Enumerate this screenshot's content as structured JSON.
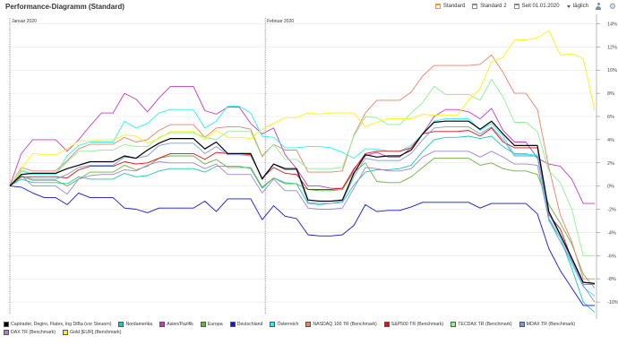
{
  "header": {
    "title": "Performance-Diagramm (Standard)",
    "toolbar": {
      "view1": "Standard",
      "view2": "Standard 2",
      "period": "Seit 01.01.2020",
      "interval": "täglich"
    }
  },
  "chart_data": {
    "type": "line",
    "title": "Performance-Diagramm (Standard)",
    "xlabel": "",
    "ylabel": "",
    "x_range": [
      "2020-01-01",
      "2020-03-12"
    ],
    "month_markers": [
      {
        "label": "Januar 2020",
        "date": "2020-01-01"
      },
      {
        "label": "Februar 2020",
        "date": "2020-02-01"
      }
    ],
    "y_ticks": [
      "14%",
      "12%",
      "10%",
      "8%",
      "6%",
      "4%",
      "2%",
      "0%",
      "-2%",
      "-4%",
      "-6%",
      "-8%",
      "-10%"
    ],
    "ylim": [
      -11,
      14.5
    ],
    "grid": true,
    "legend_position": "bottom",
    "series": [
      {
        "name": "Captrader, Degiro, Flatex, Ing DiBa (vor Steuern)",
        "color": "#000000",
        "values": [
          0,
          1.0,
          1.1,
          1.1,
          1.1,
          1.5,
          1.8,
          2.1,
          2.1,
          2.1,
          2.6,
          2.4,
          3.1,
          3.7,
          4.1,
          4.1,
          4.1,
          3.2,
          3.8,
          2.8,
          2.8,
          2.8,
          0.6,
          1.9,
          1.5,
          1.5,
          -1.2,
          -1.3,
          -1.3,
          -1.2,
          1.1,
          2.7,
          2.5,
          2.6,
          2.6,
          3.1,
          4.5,
          5.5,
          5.6,
          5.6,
          5.6,
          4.9,
          5.6,
          4.5,
          3.5,
          3.5,
          3.5,
          -2.2,
          -4.2,
          -6.2,
          -8.3,
          -8.4
        ]
      },
      {
        "name": "Nordamerika",
        "color": "#19c9b9",
        "values": [
          0,
          0.6,
          0.3,
          0.3,
          0.3,
          0.2,
          0.8,
          0.6,
          0.6,
          0.6,
          1.1,
          0.8,
          0.9,
          1.3,
          1.5,
          1.5,
          1.5,
          1.2,
          1.7,
          1.7,
          1.7,
          1.5,
          -0.2,
          0.7,
          0.3,
          0.2,
          -1.5,
          -1.6,
          -1.5,
          -1.4,
          0.1,
          1.2,
          1.4,
          1.4,
          1.5,
          1.8,
          3.0,
          4.0,
          4.2,
          4.2,
          4.3,
          4.1,
          4.3,
          3.4,
          2.8,
          2.8,
          2.5,
          -2.8,
          -4.5,
          -7.1,
          -10.0,
          -10.9
        ]
      },
      {
        "name": "Asien/Pazifik",
        "color": "#c43cc4",
        "values": [
          0,
          2.8,
          4.0,
          4.0,
          4.0,
          3.0,
          4.0,
          5.2,
          6.3,
          6.3,
          8.0,
          7.5,
          6.4,
          7.6,
          8.6,
          8.6,
          8.6,
          6.5,
          6.2,
          6.8,
          6.8,
          5.4,
          4.5,
          5.0,
          2.7,
          1.5,
          0.0,
          0.0,
          -0.2,
          -0.2,
          1.5,
          2.6,
          2.9,
          2.5,
          2.5,
          3.3,
          4.5,
          6.0,
          6.6,
          6.6,
          6.4,
          5.8,
          6.7,
          4.8,
          3.8,
          3.8,
          2.4,
          1.9,
          1.7,
          0.6,
          -1.5,
          -1.5
        ]
      },
      {
        "name": "Europa",
        "color": "#6db33f",
        "values": [
          0,
          0.8,
          0.5,
          0.5,
          0.5,
          0.0,
          0.6,
          1.2,
          1.2,
          1.2,
          1.8,
          1.4,
          1.7,
          2.4,
          2.6,
          2.6,
          2.6,
          1.9,
          2.3,
          1.6,
          1.6,
          1.6,
          -0.1,
          0.7,
          0.2,
          0.2,
          -0.3,
          -0.4,
          -0.4,
          -0.3,
          1.2,
          2.0,
          0.4,
          0.3,
          0.3,
          0.8,
          1.6,
          2.4,
          2.4,
          2.4,
          2.4,
          1.8,
          2.0,
          1.5,
          1.3,
          1.3,
          1.0,
          -1.6,
          -3.2,
          -5.0,
          -7.6,
          -8.8
        ]
      },
      {
        "name": "Deutschland",
        "color": "#1616cc",
        "values": [
          0,
          -0.1,
          -0.6,
          -1.0,
          -1.0,
          -1.6,
          -0.6,
          -1.0,
          -1.0,
          -1.0,
          -1.9,
          -2.0,
          -2.3,
          -1.9,
          -1.9,
          -1.9,
          -1.9,
          -1.3,
          -2.2,
          -1.1,
          -1.1,
          -1.1,
          -2.9,
          -1.7,
          -2.6,
          -2.8,
          -4.2,
          -4.3,
          -4.3,
          -4.2,
          -3.4,
          -1.6,
          -2.2,
          -2.1,
          -2.1,
          -1.8,
          -1.4,
          -1.4,
          -1.4,
          -1.4,
          -1.4,
          -1.9,
          -1.5,
          -1.5,
          -1.5,
          -1.5,
          -2.4,
          -5.4,
          -7.3,
          -8.8,
          -10.3,
          -10.3
        ]
      },
      {
        "name": "Österreich",
        "color": "#2ef0f0",
        "values": [
          0,
          1.3,
          1.0,
          1.0,
          1.0,
          2.6,
          3.5,
          3.8,
          3.8,
          3.8,
          5.6,
          5.0,
          5.4,
          6.3,
          6.6,
          6.6,
          6.6,
          5.0,
          5.6,
          6.9,
          6.9,
          6.3,
          4.3,
          4.2,
          3.3,
          3.3,
          3.4,
          3.4,
          3.3,
          2.9,
          2.4,
          3.2,
          3.2,
          3.0,
          3.0,
          3.5,
          4.5,
          5.6,
          5.8,
          5.8,
          5.8,
          4.8,
          5.4,
          4.3,
          2.7,
          2.7,
          2.7,
          -3.0,
          -4.5,
          -6.7,
          -8.7,
          -9.5
        ]
      },
      {
        "name": "NASDAQ 100 TR (Benchmark)",
        "color": "#e8826a",
        "values": [
          0,
          1.6,
          1.3,
          1.3,
          1.3,
          2.2,
          3.2,
          3.6,
          3.6,
          3.6,
          4.2,
          3.8,
          4.0,
          4.8,
          5.3,
          5.3,
          5.3,
          4.2,
          5.0,
          5.1,
          5.1,
          4.9,
          2.6,
          3.6,
          3.1,
          3.1,
          1.2,
          1.2,
          1.2,
          1.3,
          4.4,
          6.3,
          7.4,
          7.4,
          7.4,
          8.1,
          9.5,
          10.4,
          10.4,
          10.4,
          10.4,
          10.5,
          11.3,
          9.8,
          8.0,
          8.0,
          6.6,
          1.6,
          -2.5,
          -4.8,
          -8.0,
          -8.0
        ]
      },
      {
        "name": "S&P500 TR (Benchmark)",
        "color": "#e01010",
        "values": [
          0,
          0.8,
          0.8,
          0.8,
          0.8,
          0.7,
          1.4,
          1.7,
          1.7,
          1.7,
          2.1,
          1.9,
          2.0,
          2.4,
          2.8,
          2.8,
          2.8,
          2.3,
          2.9,
          2.8,
          2.8,
          2.7,
          0.7,
          1.6,
          1.1,
          1.0,
          -0.3,
          -0.3,
          -0.3,
          -0.2,
          1.4,
          2.8,
          3.0,
          3.0,
          3.0,
          3.3,
          4.5,
          4.7,
          4.7,
          4.7,
          4.8,
          4.3,
          5.0,
          3.8,
          3.3,
          3.3,
          3.3,
          -2.5,
          -3.7,
          -6.3,
          -8.5,
          -8.5
        ]
      },
      {
        "name": "TECDAX TR (Benchmark)",
        "color": "#8ef08e",
        "values": [
          0,
          1.4,
          1.1,
          1.1,
          1.1,
          2.1,
          3.0,
          3.0,
          3.1,
          3.1,
          3.6,
          3.4,
          3.4,
          4.2,
          4.6,
          4.6,
          4.6,
          4.2,
          4.0,
          4.7,
          4.7,
          4.7,
          2.5,
          3.6,
          2.3,
          2.3,
          1.5,
          1.5,
          1.5,
          1.6,
          4.3,
          6.0,
          5.9,
          5.3,
          5.3,
          6.3,
          7.2,
          8.6,
          7.9,
          7.9,
          7.9,
          7.4,
          9.2,
          7.7,
          5.5,
          5.5,
          4.7,
          1.3,
          0.3,
          -2.0,
          -6.0,
          -6.0
        ]
      },
      {
        "name": "MDAX TR (Benchmark)",
        "color": "#7a9ad8",
        "values": [
          0,
          0.9,
          0.6,
          0.6,
          0.6,
          1.0,
          1.6,
          1.8,
          1.8,
          1.8,
          2.5,
          2.4,
          2.6,
          3.5,
          3.7,
          3.7,
          3.7,
          2.8,
          3.4,
          2.7,
          2.7,
          2.6,
          0.7,
          1.9,
          1.4,
          1.4,
          -1.4,
          -1.5,
          -1.5,
          -1.3,
          0.8,
          2.4,
          2.2,
          2.2,
          2.2,
          2.8,
          4.0,
          5.0,
          5.1,
          5.1,
          5.1,
          4.5,
          5.1,
          4.0,
          2.6,
          2.6,
          2.6,
          -2.4,
          -4.3,
          -6.4,
          -8.5,
          -8.5
        ]
      },
      {
        "name": "DAX TR (Benchmark)",
        "color": "#9e86d0",
        "values": [
          0,
          0.9,
          0.0,
          0.0,
          0.0,
          -0.7,
          0.6,
          0.9,
          1.0,
          1.0,
          1.4,
          1.3,
          1.8,
          2.1,
          2.0,
          2.0,
          2.0,
          1.5,
          1.9,
          1.0,
          1.0,
          1.0,
          -0.6,
          0.6,
          -0.4,
          -0.4,
          -1.9,
          -2.0,
          -2.0,
          -1.9,
          -0.2,
          1.6,
          1.5,
          1.3,
          1.3,
          1.5,
          2.5,
          3.0,
          3.0,
          3.0,
          3.0,
          2.5,
          3.0,
          2.5,
          1.9,
          1.9,
          1.8,
          -2.9,
          -4.8,
          -6.5,
          -8.6,
          -10.0
        ]
      },
      {
        "name": "Gold [EUR] (Benchmark)",
        "color": "#f5f512",
        "values": [
          0,
          1.5,
          2.8,
          2.7,
          2.7,
          3.2,
          3.9,
          3.9,
          4.0,
          4.0,
          4.4,
          4.3,
          3.7,
          4.1,
          4.7,
          4.7,
          4.7,
          4.0,
          4.8,
          4.2,
          4.2,
          4.1,
          4.9,
          5.4,
          5.9,
          5.9,
          6.3,
          6.2,
          6.3,
          6.3,
          6.3,
          5.1,
          5.5,
          5.8,
          5.8,
          5.8,
          6.2,
          6.1,
          6.1,
          6.1,
          7.4,
          8.4,
          10.7,
          11.1,
          12.6,
          12.6,
          12.8,
          13.4,
          11.3,
          11.4,
          11.0,
          6.5
        ]
      }
    ]
  }
}
